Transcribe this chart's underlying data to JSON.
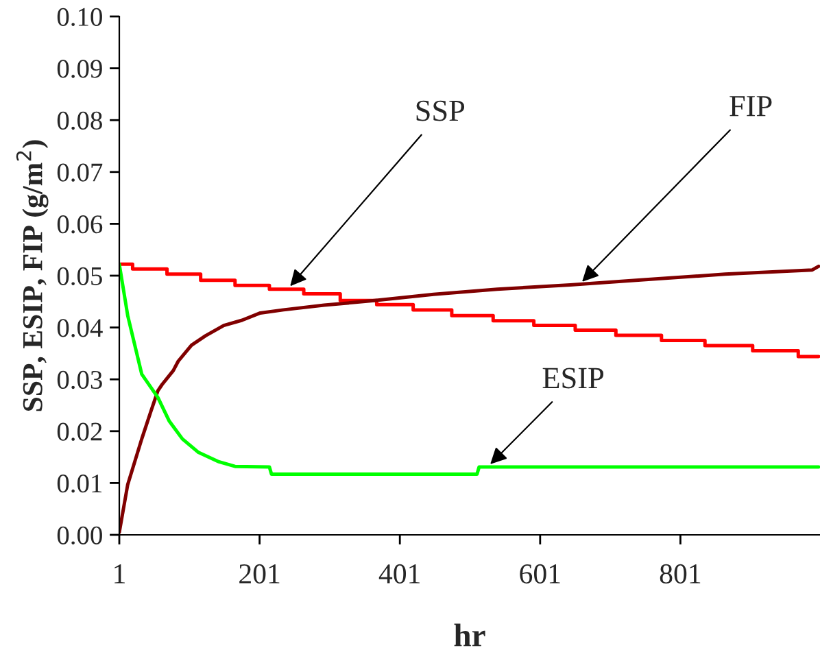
{
  "chart_data": {
    "type": "line",
    "xlabel": "hr",
    "ylabel": "SSP, ESIP, FIP (g/m$^{2}$)",
    "xlim": [
      1,
      1000
    ],
    "xticks": [
      1,
      201,
      401,
      601,
      801
    ],
    "ylim": [
      0,
      0.1
    ],
    "yticks": [
      {
        "value": 0,
        "label": "0.00"
      },
      {
        "value": 0.01,
        "label": "0.01"
      },
      {
        "value": 0.02,
        "label": "0.02"
      },
      {
        "value": 0.03,
        "label": "0.03"
      },
      {
        "value": 0.04,
        "label": "0.04"
      },
      {
        "value": 0.05,
        "label": "0.05"
      },
      {
        "value": 0.06,
        "label": "0.06"
      },
      {
        "value": 0.07,
        "label": "0.07"
      },
      {
        "value": 0.08,
        "label": "0.08"
      },
      {
        "value": 0.09,
        "label": "0.09"
      },
      {
        "value": 0.1,
        "label": "0.10"
      }
    ],
    "grid": false,
    "legend": false,
    "series": [
      {
        "type": "step",
        "color": "#ff0000",
        "x": [
          1,
          20,
          69,
          117,
          166,
          215,
          264,
          316,
          368,
          420,
          475,
          534,
          592,
          651,
          709,
          774,
          836,
          904,
          969,
          998
        ],
        "values": [
          0.0522,
          0.0513,
          0.0503,
          0.0491,
          0.0481,
          0.0474,
          0.0465,
          0.0452,
          0.0444,
          0.0434,
          0.0423,
          0.0413,
          0.0404,
          0.0395,
          0.0385,
          0.0375,
          0.0365,
          0.0355,
          0.0344,
          0.0344
        ]
      },
      {
        "color": "#800000",
        "x": [
          1,
          13,
          33,
          46,
          56,
          62,
          78,
          85,
          104,
          124,
          150,
          176,
          202,
          235,
          293,
          365,
          449,
          540,
          644,
          748,
          865,
          989,
          998
        ],
        "values": [
          0.0005,
          0.0097,
          0.0185,
          0.0238,
          0.0278,
          0.029,
          0.0317,
          0.0335,
          0.0366,
          0.0384,
          0.0404,
          0.0414,
          0.0428,
          0.0434,
          0.0443,
          0.0452,
          0.0464,
          0.0474,
          0.0482,
          0.0492,
          0.0503,
          0.0511,
          0.0518
        ]
      },
      {
        "color": "#00ff00",
        "x": [
          1,
          13,
          33,
          56,
          72,
          91,
          114,
          143,
          166,
          215,
          218,
          511,
          514,
          998
        ],
        "values": [
          0.0522,
          0.0423,
          0.031,
          0.0265,
          0.022,
          0.0185,
          0.0159,
          0.0141,
          0.0132,
          0.0131,
          0.0117,
          0.0117,
          0.0131,
          0.0131
        ]
      }
    ],
    "annotations": [
      {
        "text": "SSP",
        "x": 241,
        "y": 0.0474
      },
      {
        "text": "FIP",
        "x": 657,
        "y": 0.0483
      },
      {
        "text": "ESIP",
        "x": 526,
        "y": 0.0131
      }
    ]
  }
}
